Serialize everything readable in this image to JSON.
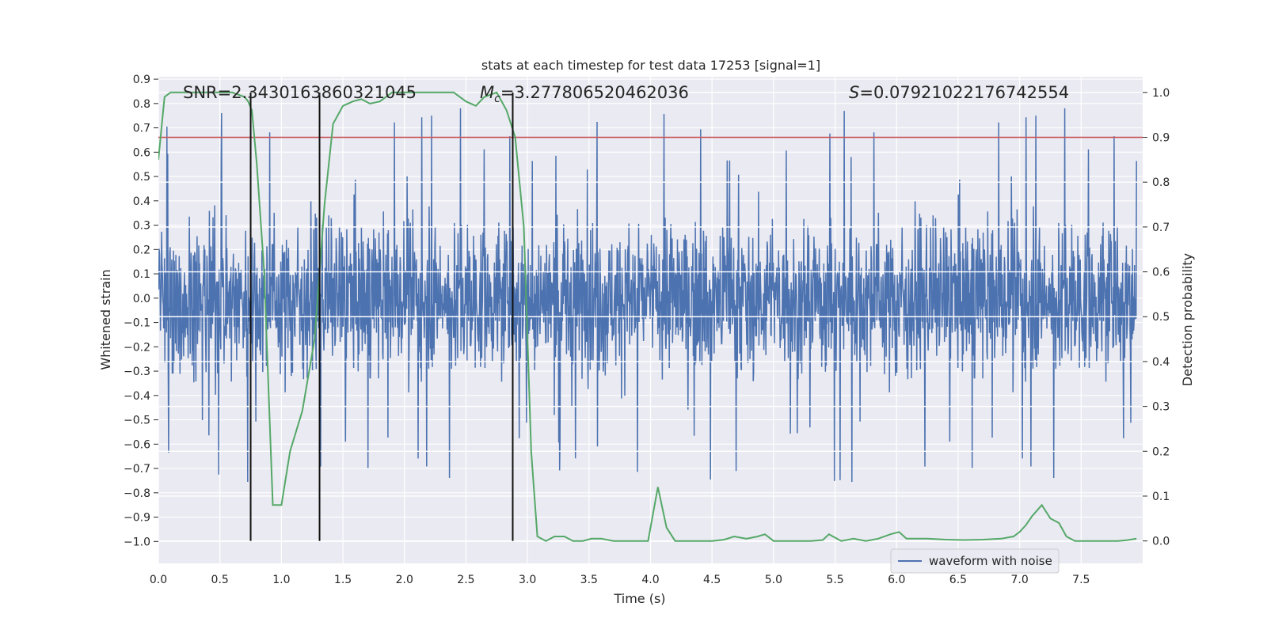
{
  "chart_data": {
    "type": "line",
    "title": "stats at each timestep for test data 17253 [signal=1]",
    "xlabel": "Time (s)",
    "ylabel": "Whitened strain",
    "y2label": "Detection probability",
    "xlim": [
      0.0,
      8.0
    ],
    "ylim": [
      -1.09,
      0.91
    ],
    "y2lim": [
      -0.05,
      1.035
    ],
    "xticks": [
      0.0,
      0.5,
      1.0,
      1.5,
      2.0,
      2.5,
      3.0,
      3.5,
      4.0,
      4.5,
      5.0,
      5.5,
      6.0,
      6.5,
      7.0,
      7.5
    ],
    "xtick_labels": [
      "0.0",
      "0.5",
      "1.0",
      "1.5",
      "2.0",
      "2.5",
      "3.0",
      "3.5",
      "4.0",
      "4.5",
      "5.0",
      "5.5",
      "6.0",
      "6.5",
      "7.0",
      "7.5"
    ],
    "yticks": [
      0.9,
      0.8,
      0.7,
      0.6,
      0.5,
      0.4,
      0.3,
      0.2,
      0.1,
      0.0,
      -0.1,
      -0.2,
      -0.3,
      -0.4,
      -0.5,
      -0.6,
      -0.7,
      -0.8,
      -0.9,
      -1.0
    ],
    "ytick_labels": [
      "0.9",
      "0.8",
      "0.7",
      "0.6",
      "0.5",
      "0.4",
      "0.3",
      "0.2",
      "0.1",
      "0.0",
      "−0.1",
      "−0.2",
      "−0.3",
      "−0.4",
      "−0.5",
      "−0.6",
      "−0.7",
      "−0.8",
      "−0.9",
      "−1.0"
    ],
    "y2ticks": [
      1.0,
      0.9,
      0.8,
      0.7,
      0.6,
      0.5,
      0.4,
      0.3,
      0.2,
      0.1,
      0.0
    ],
    "y2tick_labels": [
      "1.0",
      "0.9",
      "0.8",
      "0.7",
      "0.6",
      "0.5",
      "0.4",
      "0.3",
      "0.2",
      "0.1",
      "0.0"
    ],
    "grid": true,
    "legend": {
      "entries": [
        "waveform with noise"
      ],
      "placement": "lower-right"
    },
    "annotations": {
      "snr_text": "SNR=2.3430163860321045",
      "mc_text": "=3.277806520462036",
      "mc_symbol": "M",
      "mc_subscript": "c",
      "s_text": "=0.07921022176742554",
      "s_symbol": "S"
    },
    "threshold": {
      "axis": "y2",
      "value": 0.9,
      "color": "#c44e52"
    },
    "vertical_lines": [
      0.75,
      1.31,
      2.88
    ],
    "waveform": {
      "name": "waveform with noise",
      "color": "#4c72b0",
      "typical_amplitude": 0.4,
      "max_peak": 0.82,
      "min_trough": -1.0
    },
    "probability": {
      "color": "#55a868",
      "x": [
        0.0,
        0.05,
        0.1,
        0.2,
        0.3,
        0.4,
        0.5,
        0.6,
        0.7,
        0.73,
        0.76,
        0.8,
        0.86,
        0.93,
        1.0,
        1.07,
        1.17,
        1.27,
        1.35,
        1.42,
        1.5,
        1.58,
        1.65,
        1.72,
        1.8,
        1.9,
        2.0,
        2.1,
        2.2,
        2.3,
        2.4,
        2.5,
        2.58,
        2.65,
        2.75,
        2.83,
        2.9,
        2.97,
        3.03,
        3.08,
        3.15,
        3.22,
        3.3,
        3.37,
        3.45,
        3.52,
        3.6,
        3.7,
        3.8,
        3.9,
        3.98,
        4.06,
        4.13,
        4.2,
        4.3,
        4.4,
        4.5,
        4.6,
        4.68,
        4.78,
        4.87,
        4.93,
        5.0,
        5.1,
        5.2,
        5.3,
        5.4,
        5.45,
        5.55,
        5.65,
        5.75,
        5.85,
        5.95,
        6.02,
        6.08,
        6.15,
        6.25,
        6.4,
        6.55,
        6.7,
        6.85,
        6.95,
        7.0,
        7.05,
        7.1,
        7.18,
        7.25,
        7.32,
        7.38,
        7.45,
        7.55,
        7.7,
        7.8,
        7.88,
        7.95
      ],
      "y": [
        0.85,
        0.99,
        1.0,
        1.0,
        1.0,
        1.0,
        1.0,
        1.0,
        0.99,
        0.98,
        0.96,
        0.84,
        0.6,
        0.08,
        0.08,
        0.2,
        0.29,
        0.45,
        0.75,
        0.93,
        0.97,
        0.98,
        0.985,
        0.975,
        0.98,
        1.0,
        1.0,
        1.0,
        1.0,
        1.0,
        1.0,
        0.98,
        0.97,
        0.99,
        1.0,
        0.96,
        0.9,
        0.7,
        0.2,
        0.01,
        0.0,
        0.01,
        0.01,
        0.0,
        0.0,
        0.005,
        0.005,
        0.0,
        0.0,
        0.0,
        0.0,
        0.12,
        0.03,
        0.0,
        0.0,
        0.0,
        0.0,
        0.003,
        0.01,
        0.005,
        0.01,
        0.015,
        0.0,
        0.0,
        0.0,
        0.0,
        0.002,
        0.015,
        0.0,
        0.005,
        0.0,
        0.005,
        0.015,
        0.02,
        0.005,
        0.005,
        0.005,
        0.003,
        0.002,
        0.003,
        0.005,
        0.01,
        0.02,
        0.035,
        0.055,
        0.08,
        0.05,
        0.04,
        0.01,
        0.0,
        0.0,
        0.0,
        0.0,
        0.002,
        0.005
      ]
    }
  }
}
